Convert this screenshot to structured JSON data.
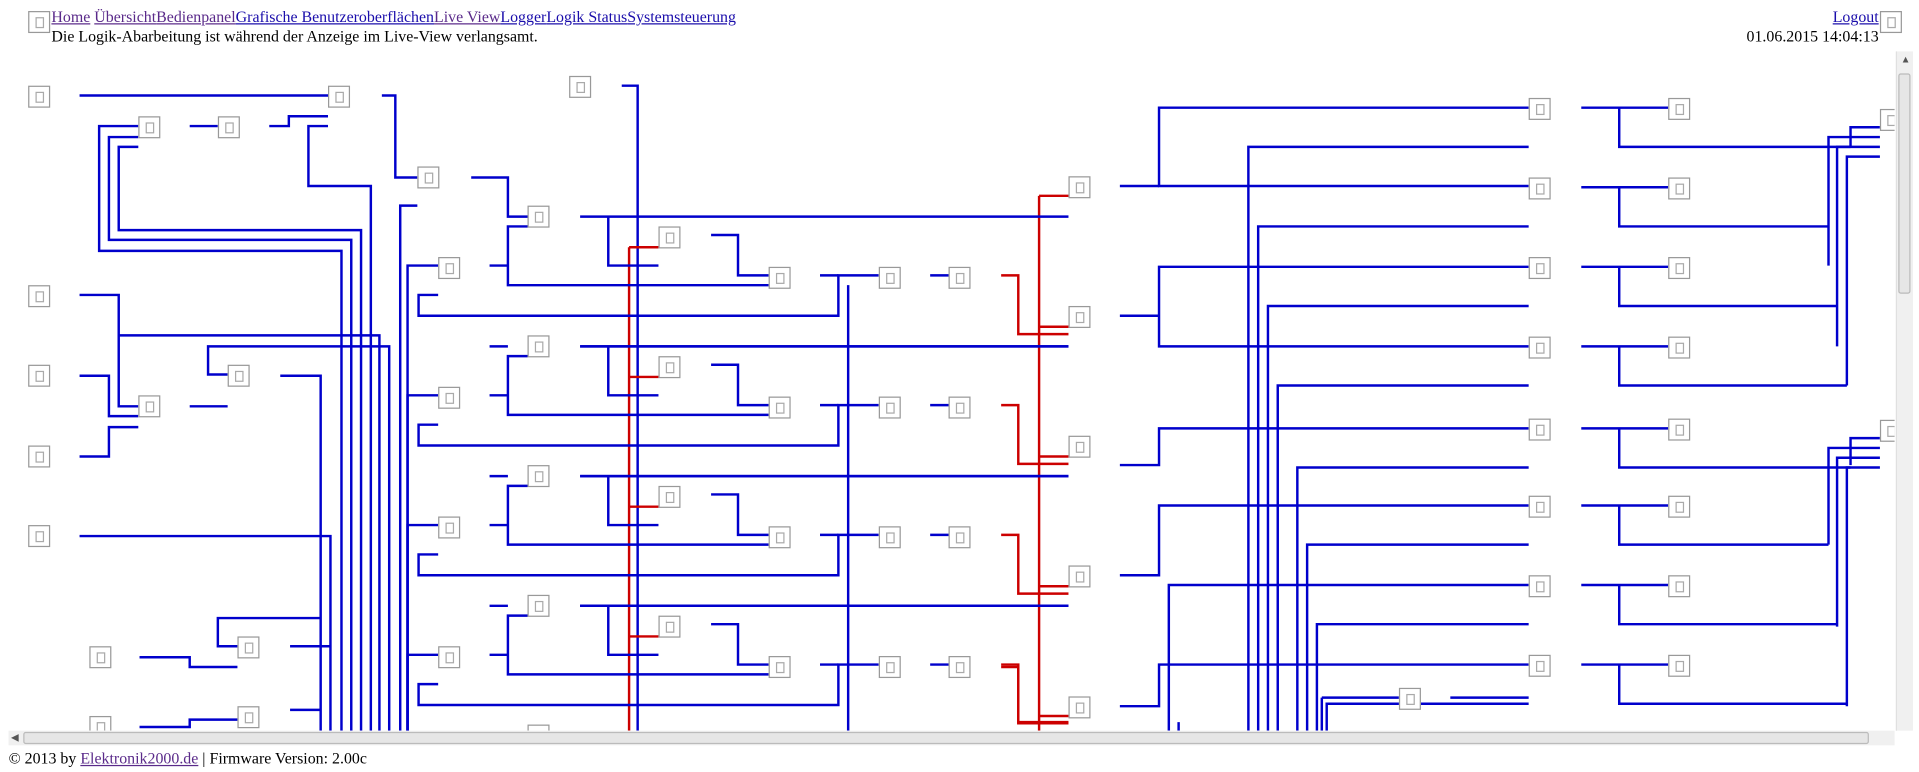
{
  "nav": {
    "links": [
      "Home",
      "Übersicht",
      "Bedienpanel",
      "Grafische Benutzeroberflächen",
      "Live View",
      "Logger",
      "Logik Status",
      "Systemsteuerung"
    ],
    "logout": "Logout"
  },
  "notice": "Die Logik-Abarbeitung ist während der Anzeige im Live-View verlangsamt.",
  "datetime": "01.06.2015 14:04:13",
  "footer": {
    "copyright": "© 2013 by ",
    "link": "Elektronik2000.de",
    "firmware": " | Firmware Version: 2.00c"
  },
  "colors": {
    "wire": "#0000cc",
    "active_wire": "#cc0000"
  },
  "icons": {
    "logic_block": "broken-image-icon"
  }
}
